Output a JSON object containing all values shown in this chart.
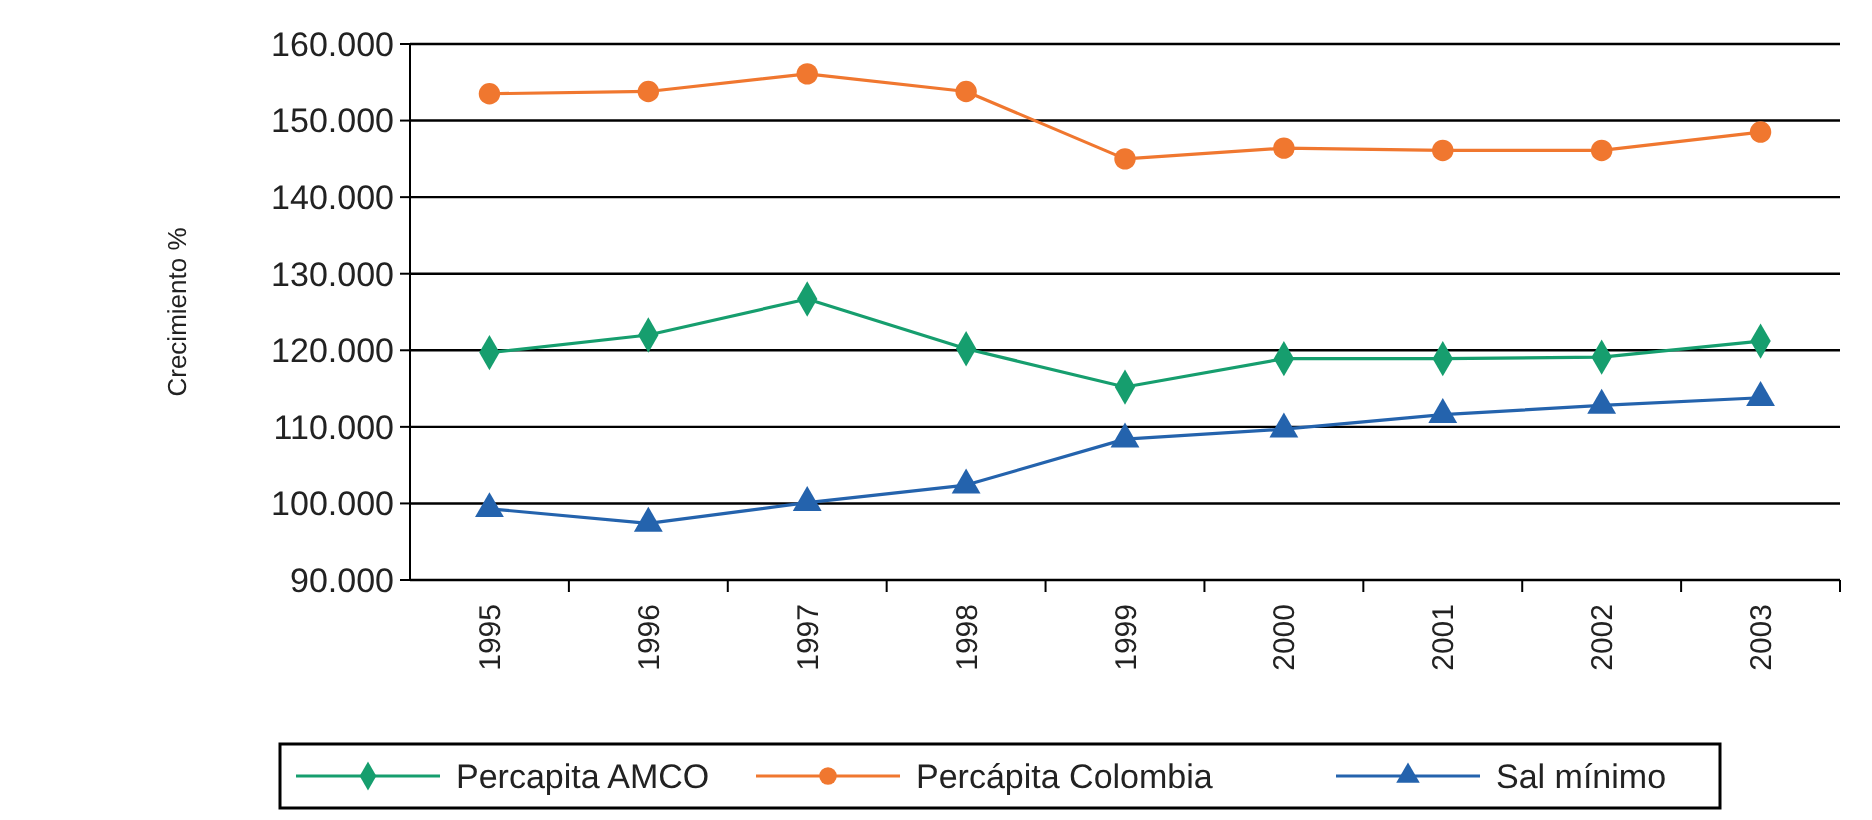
{
  "chart_data": {
    "type": "line",
    "ylabel": "Crecimiento %",
    "categories": [
      "1995",
      "1996",
      "1997",
      "1998",
      "1999",
      "2000",
      "2001",
      "2002",
      "2003"
    ],
    "series": [
      {
        "name": "Percapita AMCO",
        "color": "#169e6e",
        "marker": "diamond",
        "values": [
          119.7,
          122,
          126.7,
          120.2,
          115.2,
          118.9,
          118.9,
          119.1,
          121.2
        ]
      },
      {
        "name": "Percápita Colombia",
        "color": "#f0772f",
        "marker": "circle",
        "values": [
          153.5,
          153.8,
          156.1,
          153.8,
          145,
          146.4,
          146.1,
          146.1,
          148.5
        ]
      },
      {
        "name": "Sal mínimo",
        "color": "#2463ad",
        "marker": "triangle",
        "values": [
          99.3,
          97.4,
          100.1,
          102.4,
          108.4,
          109.7,
          111.6,
          112.8,
          113.8
        ]
      }
    ],
    "ylim": [
      90,
      160
    ],
    "yticks": [
      {
        "value": 90,
        "label": "90.000"
      },
      {
        "value": 100,
        "label": "100.000"
      },
      {
        "value": 110,
        "label": "110.000"
      },
      {
        "value": 120,
        "label": "120.000"
      },
      {
        "value": 130,
        "label": "130.000"
      },
      {
        "value": 140,
        "label": "140.000"
      },
      {
        "value": 150,
        "label": "150.000"
      },
      {
        "value": 160,
        "label": "160.000"
      }
    ],
    "grid": "y",
    "legend": "bottom",
    "line_style": "solid"
  }
}
